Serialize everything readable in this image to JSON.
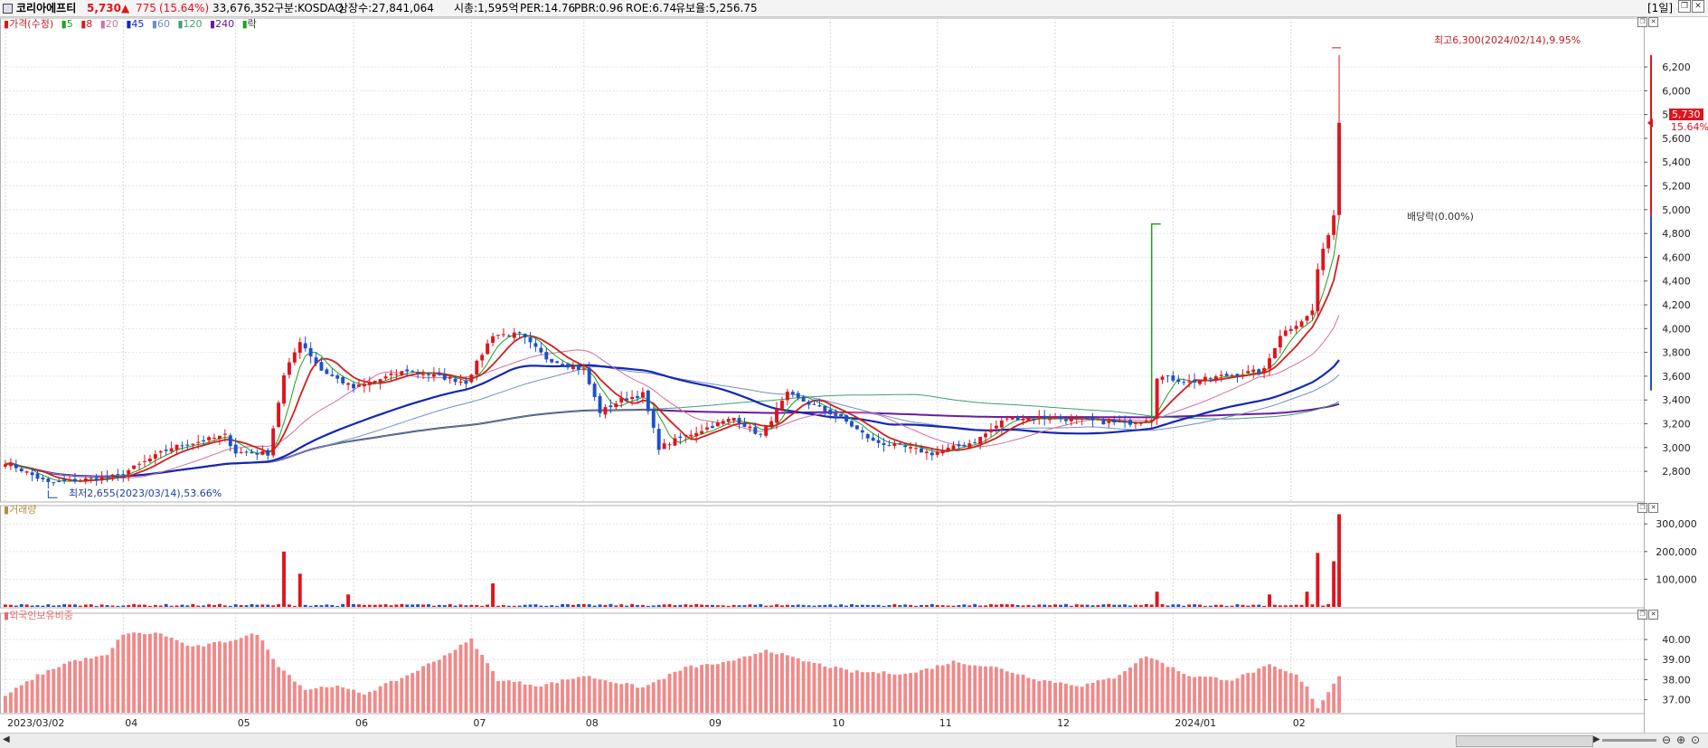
{
  "header": {
    "menu_icon": "menu-icon",
    "name": "코리아에프티",
    "price": "5,730",
    "change_arrow": "▲",
    "change": "775",
    "change_pct": "(15.64%)",
    "volume": "33,676,352",
    "market": "구분:KOSDAQ",
    "shares": "상장수:27,841,064",
    "market_cap": "시총:1,595억",
    "per": "PER:14.76",
    "pbr": "PBR:0.96",
    "roe": "ROE:6.74",
    "reserve": "유보율:5,256.75",
    "period": "[1일]"
  },
  "colors": {
    "up": "#e0141e",
    "down": "#1e50c8",
    "ma5": "#20a020",
    "ma8": "#d02020",
    "ma20": "#d070a0",
    "ma45": "#1428b4",
    "ma60": "#7090c0",
    "ma120": "#40a070",
    "ma240": "#6a1ca0",
    "foreign": "#f08a8a"
  },
  "price_legend": [
    "가격(수정)",
    "5",
    "8",
    "20",
    "45",
    "60",
    "120",
    "240",
    "락"
  ],
  "volume_legend": "거래량",
  "foreign_legend": "외국인보유비중",
  "annotations": {
    "high": "최고6,300(2024/02/14),9.95%",
    "low": "최저2,655(2023/03/14),53.66%",
    "dividend": "배당락(0.00%)",
    "current_price": "5,730",
    "current_pct": "15.64%"
  },
  "chart_data": [
    {
      "type": "candlestick",
      "title": "가격(수정)",
      "y_ticks": [
        "2,800",
        "3,000",
        "3,200",
        "3,400",
        "3,600",
        "3,800",
        "4,000",
        "4,200",
        "4,400",
        "4,600",
        "4,800",
        "5,000",
        "5,200",
        "5,400",
        "5,600",
        "5,800",
        "6,000",
        "6,200"
      ],
      "ylim": [
        2550,
        6550
      ],
      "x_labels": [
        "2023/03/02",
        "04",
        "05",
        "06",
        "07",
        "08",
        "09",
        "10",
        "11",
        "12",
        "2024/01",
        "02"
      ],
      "x_label_dates": [
        "2023/03/02",
        "2023/04/03",
        "2023/05/02",
        "2023/06/01",
        "2023/07/03",
        "2023/08/01",
        "2023/09/01",
        "2023/10/04",
        "2023/11/01",
        "2023/12/01",
        "2024/01/02",
        "2024/02/01"
      ],
      "close_anchors": [
        [
          "2023/03/02",
          2880
        ],
        [
          "2023/03/14",
          2700
        ],
        [
          "2023/03/31",
          2760
        ],
        [
          "2023/04/14",
          3000
        ],
        [
          "2023/04/28",
          3100
        ],
        [
          "2023/05/02",
          2960
        ],
        [
          "2023/05/10",
          2950
        ],
        [
          "2023/05/15",
          3600
        ],
        [
          "2023/05/18",
          3900
        ],
        [
          "2023/05/24",
          3650
        ],
        [
          "2023/06/01",
          3500
        ],
        [
          "2023/06/15",
          3650
        ],
        [
          "2023/06/30",
          3550
        ],
        [
          "2023/07/07",
          3950
        ],
        [
          "2023/07/14",
          3950
        ],
        [
          "2023/07/21",
          3750
        ],
        [
          "2023/08/01",
          3650
        ],
        [
          "2023/08/04",
          3300
        ],
        [
          "2023/08/10",
          3400
        ],
        [
          "2023/08/16",
          3450
        ],
        [
          "2023/08/21",
          3000
        ],
        [
          "2023/08/28",
          3100
        ],
        [
          "2023/09/08",
          3250
        ],
        [
          "2023/09/15",
          3100
        ],
        [
          "2023/09/22",
          3450
        ],
        [
          "2023/10/06",
          3250
        ],
        [
          "2023/10/16",
          3050
        ],
        [
          "2023/10/24",
          3000
        ],
        [
          "2023/10/31",
          2950
        ],
        [
          "2023/11/10",
          3050
        ],
        [
          "2023/11/20",
          3250
        ],
        [
          "2023/11/30",
          3250
        ],
        [
          "2023/12/20",
          3200
        ],
        [
          "2023/12/27",
          3250
        ],
        [
          "2023/12/28",
          3600
        ],
        [
          "2024/01/05",
          3550
        ],
        [
          "2024/01/15",
          3600
        ],
        [
          "2024/01/25",
          3650
        ],
        [
          "2024/01/30",
          3950
        ],
        [
          "2024/02/06",
          4100
        ],
        [
          "2024/02/07",
          4150
        ],
        [
          "2024/02/08",
          4500
        ],
        [
          "2024/02/13",
          4955
        ],
        [
          "2024/02/14",
          5730
        ]
      ],
      "high": {
        "value": 6300,
        "date": "2024/02/14"
      },
      "low": {
        "value": 2655,
        "date": "2023/03/14"
      },
      "current": 5730,
      "moving_averages": [
        "5",
        "8",
        "20",
        "45",
        "60",
        "120",
        "240"
      ]
    },
    {
      "type": "bar",
      "title": "거래량",
      "y_ticks": [
        "100,000",
        "200,000",
        "300,000"
      ],
      "ylim": [
        0,
        340000
      ],
      "spikes": [
        [
          "2023/05/15",
          200000
        ],
        [
          "2023/05/18",
          120000
        ],
        [
          "2023/05/31",
          45000
        ],
        [
          "2023/07/07",
          85000
        ],
        [
          "2023/12/28",
          55000
        ],
        [
          "2024/01/26",
          45000
        ],
        [
          "2024/02/06",
          55000
        ],
        [
          "2024/02/08",
          195000
        ],
        [
          "2024/02/13",
          165000
        ],
        [
          "2024/02/14",
          335000
        ]
      ],
      "baseline": 7000
    },
    {
      "type": "bar",
      "title": "외국인보유비중",
      "y_ticks": [
        "37.00",
        "38.00",
        "39.00",
        "40.00"
      ],
      "ylim": [
        36.35,
        40.95
      ],
      "anchors": [
        [
          "2023/03/02",
          37.2
        ],
        [
          "2023/03/10",
          38.2
        ],
        [
          "2023/03/20",
          38.9
        ],
        [
          "2023/03/29",
          39.2
        ],
        [
          "2023/04/03",
          40.3
        ],
        [
          "2023/04/12",
          40.3
        ],
        [
          "2023/04/20",
          39.6
        ],
        [
          "2023/04/28",
          39.9
        ],
        [
          "2023/05/08",
          40.3
        ],
        [
          "2023/05/12",
          38.7
        ],
        [
          "2023/05/19",
          37.5
        ],
        [
          "2023/05/26",
          37.7
        ],
        [
          "2023/06/05",
          37.3
        ],
        [
          "2023/06/15",
          38.2
        ],
        [
          "2023/06/26",
          39.2
        ],
        [
          "2023/07/03",
          40.0
        ],
        [
          "2023/07/10",
          38.0
        ],
        [
          "2023/07/20",
          37.7
        ],
        [
          "2023/08/01",
          38.2
        ],
        [
          "2023/08/16",
          37.6
        ],
        [
          "2023/08/28",
          38.6
        ],
        [
          "2023/09/08",
          38.9
        ],
        [
          "2023/09/18",
          39.5
        ],
        [
          "2023/09/26",
          39.0
        ],
        [
          "2023/10/10",
          38.4
        ],
        [
          "2023/10/25",
          38.3
        ],
        [
          "2023/11/06",
          38.9
        ],
        [
          "2023/11/16",
          38.6
        ],
        [
          "2023/11/28",
          38.0
        ],
        [
          "2023/12/08",
          37.7
        ],
        [
          "2023/12/18",
          38.1
        ],
        [
          "2023/12/26",
          39.2
        ],
        [
          "2024/01/05",
          38.2
        ],
        [
          "2024/01/17",
          38.0
        ],
        [
          "2024/01/26",
          38.7
        ],
        [
          "2024/02/02",
          38.2
        ],
        [
          "2024/02/06",
          37.6
        ],
        [
          "2024/02/08",
          36.6
        ],
        [
          "2024/02/14",
          38.2
        ]
      ]
    }
  ]
}
